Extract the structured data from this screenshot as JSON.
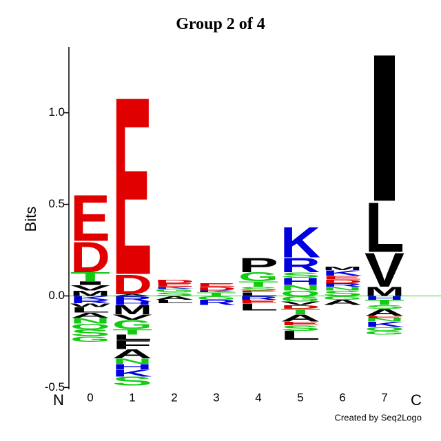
{
  "chart_data": {
    "type": "logo",
    "title": "Group 2 of 4",
    "y_label": "Bits",
    "n_label": "N",
    "c_label": "C",
    "credit": "Created by Seq2Logo",
    "ylim": [
      -0.51,
      1.36
    ],
    "yticks": [
      {
        "value": -0.5,
        "label": "-0.5"
      },
      {
        "value": 0,
        "label": "0.0"
      },
      {
        "value": 0.5,
        "label": "0.5"
      },
      {
        "value": 1,
        "label": "1.0"
      }
    ],
    "categories": [
      "0",
      "1",
      "2",
      "3",
      "4",
      "5",
      "6",
      "7"
    ],
    "colors": {
      "A": "#000000",
      "C": "#000000",
      "F": "#000000",
      "I": "#000000",
      "L": "#000000",
      "M": "#000000",
      "P": "#000000",
      "V": "#000000",
      "W": "#000000",
      "D": "#e00000",
      "E": "#e00000",
      "H": "#0000e0",
      "K": "#0000e0",
      "R": "#0000e0",
      "G": "#11cc11",
      "N": "#11cc11",
      "Q": "#11cc11",
      "S": "#11cc11",
      "T": "#11cc11",
      "Y": "#11cc11"
    },
    "positions": [
      {
        "positive": [
          {
            "letter": "M",
            "value": 0.03
          },
          {
            "letter": "V",
            "value": 0.03
          },
          {
            "letter": "I",
            "value": 0.02
          },
          {
            "letter": "T",
            "value": 0.05
          },
          {
            "letter": "D",
            "value": 0.17
          },
          {
            "letter": "E",
            "value": 0.26
          }
        ],
        "negative": [
          {
            "letter": "K",
            "value": 0.02
          },
          {
            "letter": "R",
            "value": 0.02
          },
          {
            "letter": "W",
            "value": 0.02
          },
          {
            "letter": "L",
            "value": 0.03
          },
          {
            "letter": "A",
            "value": 0.03
          },
          {
            "letter": "N",
            "value": 0.03
          },
          {
            "letter": "Q",
            "value": 0.03
          },
          {
            "letter": "S",
            "value": 0.04
          },
          {
            "letter": "G",
            "value": 0.03
          }
        ]
      },
      {
        "positive": [
          {
            "letter": "A",
            "value": 0.01
          },
          {
            "letter": "D",
            "value": 0.11
          },
          {
            "letter": "E",
            "value": 1.0
          }
        ],
        "negative": [
          {
            "letter": "R",
            "value": 0.03
          },
          {
            "letter": "H",
            "value": 0.02
          },
          {
            "letter": "M",
            "value": 0.05
          },
          {
            "letter": "V",
            "value": 0.03
          },
          {
            "letter": "G",
            "value": 0.05
          },
          {
            "letter": "T",
            "value": 0.03
          },
          {
            "letter": "L",
            "value": 0.03
          },
          {
            "letter": "F",
            "value": 0.05
          },
          {
            "letter": "A",
            "value": 0.05
          },
          {
            "letter": "N",
            "value": 0.03
          },
          {
            "letter": "H",
            "value": 0.03
          },
          {
            "letter": "K",
            "value": 0.04
          },
          {
            "letter": "S",
            "value": 0.05
          }
        ]
      },
      {
        "positive": [
          {
            "letter": "S",
            "value": 0.02
          },
          {
            "letter": "G",
            "value": 0.02
          },
          {
            "letter": "K",
            "value": 0.01
          },
          {
            "letter": "E",
            "value": 0.02
          },
          {
            "letter": "D",
            "value": 0.02
          }
        ],
        "negative": [
          {
            "letter": "A",
            "value": 0.02
          },
          {
            "letter": "L",
            "value": 0.02
          }
        ]
      },
      {
        "positive": [
          {
            "letter": "T",
            "value": 0.02
          },
          {
            "letter": "K",
            "value": 0.01
          },
          {
            "letter": "D",
            "value": 0.02
          },
          {
            "letter": "E",
            "value": 0.02
          }
        ],
        "negative": [
          {
            "letter": "G",
            "value": 0.02
          },
          {
            "letter": "R",
            "value": 0.03
          }
        ]
      },
      {
        "positive": [
          {
            "letter": "L",
            "value": 0.02
          },
          {
            "letter": "E",
            "value": 0.01
          },
          {
            "letter": "S",
            "value": 0.02
          },
          {
            "letter": "T",
            "value": 0.03
          },
          {
            "letter": "G",
            "value": 0.05
          },
          {
            "letter": "P",
            "value": 0.08
          }
        ],
        "negative": [
          {
            "letter": "R",
            "value": 0.02
          },
          {
            "letter": "E",
            "value": 0.02
          },
          {
            "letter": "L",
            "value": 0.04
          }
        ]
      },
      {
        "positive": [
          {
            "letter": "Q",
            "value": 0.03
          },
          {
            "letter": "N",
            "value": 0.03
          },
          {
            "letter": "H",
            "value": 0.04
          },
          {
            "letter": "S",
            "value": 0.03
          },
          {
            "letter": "R",
            "value": 0.08
          },
          {
            "letter": "K",
            "value": 0.17
          }
        ],
        "negative": [
          {
            "letter": "G",
            "value": 0.03
          },
          {
            "letter": "V",
            "value": 0.02
          },
          {
            "letter": "D",
            "value": 0.02
          },
          {
            "letter": "T",
            "value": 0.03
          },
          {
            "letter": "A",
            "value": 0.04
          },
          {
            "letter": "E",
            "value": 0.02
          },
          {
            "letter": "S",
            "value": 0.03
          },
          {
            "letter": "L",
            "value": 0.05
          }
        ]
      },
      {
        "positive": [
          {
            "letter": "S",
            "value": 0.03
          },
          {
            "letter": "N",
            "value": 0.02
          },
          {
            "letter": "R",
            "value": 0.02
          },
          {
            "letter": "D",
            "value": 0.02
          },
          {
            "letter": "E",
            "value": 0.02
          },
          {
            "letter": "K",
            "value": 0.03
          },
          {
            "letter": "M",
            "value": 0.02
          }
        ],
        "negative": [
          {
            "letter": "G",
            "value": 0.02
          },
          {
            "letter": "A",
            "value": 0.03
          }
        ]
      },
      {
        "positive": [
          {
            "letter": "M",
            "value": 0.05
          },
          {
            "letter": "V",
            "value": 0.19
          },
          {
            "letter": "L",
            "value": 0.28
          },
          {
            "letter": "I",
            "value": 0.83
          }
        ],
        "negative": [
          {
            "letter": "H",
            "value": 0.02
          },
          {
            "letter": "T",
            "value": 0.03
          },
          {
            "letter": "S",
            "value": 0.02
          },
          {
            "letter": "A",
            "value": 0.04
          },
          {
            "letter": "E",
            "value": 0.01
          },
          {
            "letter": "N",
            "value": 0.02
          },
          {
            "letter": "K",
            "value": 0.03
          },
          {
            "letter": "Q",
            "value": 0.02
          },
          {
            "letter": "G",
            "value": 0.02
          }
        ]
      }
    ]
  }
}
